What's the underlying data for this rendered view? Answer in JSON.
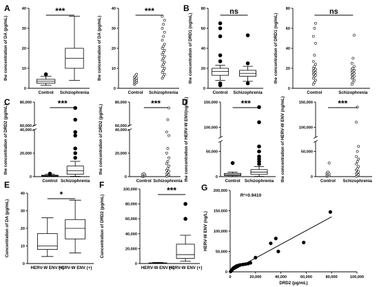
{
  "chart_data": [
    {
      "id": "A1",
      "panel": "A",
      "type": "box",
      "ylabel": "the concentration of DA (pg/mL)",
      "yticks": [
        0,
        10,
        20,
        30,
        40
      ],
      "ylim": [
        0,
        40
      ],
      "categories": [
        "Control",
        "Schizophrenia"
      ],
      "series": [
        {
          "whisker_low": 1.5,
          "q1": 2.5,
          "median": 3.5,
          "q3": 4.5,
          "whisker_high": 6,
          "outliers": [
            7
          ]
        },
        {
          "whisker_low": 4,
          "q1": 10,
          "median": 15,
          "q3": 20,
          "whisker_high": 36,
          "outliers": []
        }
      ],
      "significance": "***"
    },
    {
      "id": "A2",
      "type": "scatter",
      "ylabel": "the concentration of DA (pg/mL)",
      "yticks": [
        0,
        10,
        20,
        30,
        40
      ],
      "ylim": [
        0,
        40
      ],
      "categories": [
        "Control",
        "Schizophrenia"
      ],
      "groups": [
        {
          "values": [
            2,
            2.5,
            3,
            3.2,
            3.6,
            4,
            4.3,
            4.7,
            5.1,
            5.6,
            6.2,
            7
          ]
        },
        {
          "values": [
            5,
            6,
            7,
            8,
            9,
            10,
            11,
            12,
            13,
            14,
            15,
            16,
            17,
            18,
            19,
            20,
            21,
            22,
            24,
            26,
            28,
            30,
            32,
            34,
            36
          ]
        }
      ],
      "significance": "***"
    },
    {
      "id": "B1",
      "panel": "B",
      "type": "box",
      "ylabel": "the concentration of DRD1 (ng/mL)",
      "yticks": [
        0,
        20,
        40,
        60,
        80
      ],
      "ylim": [
        0,
        80
      ],
      "categories": [
        "Control",
        "Schizophrenia"
      ],
      "series": [
        {
          "whisker_low": 8,
          "q1": 13,
          "median": 17,
          "q3": 20,
          "whisker_high": 23,
          "outliers": [
            3,
            5,
            27,
            33,
            52,
            60,
            65
          ]
        },
        {
          "whisker_low": 7,
          "q1": 12,
          "median": 15,
          "q3": 18,
          "whisker_high": 22,
          "outliers": [
            5,
            25,
            53
          ]
        }
      ],
      "significance": "ns"
    },
    {
      "id": "B2",
      "type": "scatter",
      "ylabel": "the concentration of DRD1 (ng/mL)",
      "yticks": [
        0,
        20,
        40,
        60,
        80
      ],
      "ylim": [
        0,
        80
      ],
      "categories": [
        "Control",
        "Schizophrenia"
      ],
      "groups": [
        {
          "values": [
            4,
            6,
            8,
            10,
            12,
            13,
            14,
            15,
            16,
            17,
            18,
            19,
            20,
            22,
            24,
            27,
            33,
            45,
            52,
            60,
            65
          ]
        },
        {
          "values": [
            4,
            6,
            8,
            10,
            11,
            12,
            13,
            14,
            15,
            16,
            17,
            18,
            19,
            20,
            22,
            25,
            30,
            53
          ]
        }
      ],
      "significance": "ns"
    },
    {
      "id": "C1",
      "panel": "C",
      "type": "box",
      "ylabel": "the concentration of DRD2 (pg/mL)",
      "yticks": [
        0,
        20000,
        40000,
        60000,
        80000
      ],
      "ytick_labels": [
        "0",
        "20,000",
        "40,000",
        "60,000",
        "80,000"
      ],
      "axis_break": [
        40000,
        60000
      ],
      "ylim": [
        0,
        80000
      ],
      "categories": [
        "Control",
        "Schizophrenia"
      ],
      "series": [
        {
          "whisker_low": 100,
          "q1": 400,
          "median": 800,
          "q3": 1200,
          "whisker_high": 2000,
          "outliers": [
            2500
          ]
        },
        {
          "whisker_low": 300,
          "q1": 2000,
          "median": 5000,
          "q3": 9000,
          "whisker_high": 13000,
          "outliers": [
            16000,
            20000,
            24000,
            35000,
            38000,
            65000,
            75000
          ]
        }
      ],
      "significance": "***"
    },
    {
      "id": "C2",
      "type": "scatter",
      "ylabel": "the concentration of DRD2 (pg/mL)",
      "yticks": [
        0,
        20000,
        40000,
        60000,
        80000
      ],
      "ytick_labels": [
        "0",
        "20,000",
        "40,000",
        "60,000",
        "80,000"
      ],
      "axis_break": [
        40000,
        60000
      ],
      "ylim": [
        0,
        80000
      ],
      "categories": [
        "Control",
        "Schizophrenia"
      ],
      "groups": [
        {
          "values": [
            100,
            300,
            500,
            800,
            1100,
            1500,
            2000,
            2500
          ]
        },
        {
          "values": [
            300,
            800,
            1500,
            2500,
            3500,
            4500,
            5500,
            7000,
            9000,
            11000,
            13000,
            16000,
            20000,
            24000,
            35000,
            38000,
            65000,
            75000
          ]
        }
      ],
      "significance": "***"
    },
    {
      "id": "D1",
      "panel": "D",
      "type": "box",
      "ylabel": "the concentration of HERV-W ENV(ng/mL)",
      "yticks": [
        0,
        50000,
        100000,
        150000
      ],
      "ytick_labels": [
        "0",
        "50,000",
        "100,000",
        "150,000"
      ],
      "axis_break": [
        70000,
        80000
      ],
      "ylim": [
        0,
        150000
      ],
      "categories": [
        "Control",
        "Schizophrenia"
      ],
      "series": [
        {
          "whisker_low": 300,
          "q1": 2000,
          "median": 4000,
          "q3": 6500,
          "whisker_high": 9000,
          "outliers": [
            27000
          ]
        },
        {
          "whisker_low": 500,
          "q1": 4500,
          "median": 9000,
          "q3": 14000,
          "whisker_high": 20000,
          "outliers": [
            25000,
            30000,
            35000,
            40000,
            50000,
            60000,
            110000,
            140000
          ]
        }
      ],
      "significance": "***"
    },
    {
      "id": "D2",
      "type": "scatter",
      "ylabel": "the concentration of HERV-W ENV (ng/mL)",
      "yticks": [
        0,
        50000,
        100000,
        150000
      ],
      "ytick_labels": [
        "0",
        "50,000",
        "100,000",
        "150,000"
      ],
      "axis_break": [
        70000,
        80000
      ],
      "ylim": [
        0,
        150000
      ],
      "categories": [
        "Control",
        "Schizophrenia"
      ],
      "groups": [
        {
          "values": [
            300,
            1000,
            2000,
            3000,
            4000,
            5500,
            7000,
            9000,
            27000
          ]
        },
        {
          "values": [
            500,
            2000,
            4000,
            6000,
            8000,
            10000,
            13000,
            16000,
            20000,
            25000,
            30000,
            35000,
            40000,
            50000,
            60000,
            110000,
            140000
          ]
        }
      ],
      "significance": "***"
    },
    {
      "id": "E",
      "panel": "E",
      "type": "box",
      "ylabel": "Concentration of DA (pg/mL)",
      "yticks": [
        0,
        10,
        20,
        30,
        40
      ],
      "ylim": [
        0,
        40
      ],
      "categories": [
        "HERV-W ENV (−)",
        "HERV-W ENV (+)"
      ],
      "series": [
        {
          "whisker_low": 4,
          "q1": 8,
          "median": 10,
          "q3": 17,
          "whisker_high": 26,
          "outliers": []
        },
        {
          "whisker_low": 6,
          "q1": 14,
          "median": 20,
          "q3": 25,
          "whisker_high": 36,
          "outliers": []
        }
      ],
      "significance": "*"
    },
    {
      "id": "F",
      "panel": "F",
      "type": "box",
      "ylabel": "Concentration of DRD2 (pg/mL)",
      "yticks": [
        0,
        20000,
        40000,
        60000,
        80000,
        100000
      ],
      "ytick_labels": [
        "0",
        "20,000",
        "40,000",
        "60,000",
        "80,000",
        "100,000"
      ],
      "ylim": [
        0,
        100000
      ],
      "categories": [
        "HERV-W ENV (−)",
        "HERV-W ENV (+)"
      ],
      "series": [
        {
          "whisker_low": 0,
          "q1": 200,
          "median": 500,
          "q3": 900,
          "whisker_high": 1500,
          "outliers": []
        },
        {
          "whisker_low": 3000,
          "q1": 7000,
          "median": 12000,
          "q3": 26000,
          "whisker_high": 38000,
          "outliers": [
            60000,
            80000
          ]
        }
      ],
      "significance": "***"
    },
    {
      "id": "G",
      "panel": "G",
      "type": "scatter",
      "xlabel": "DRD2 (pg/mL)",
      "ylabel": "HERV-W ENV (ng/L)",
      "xticks": [
        0,
        20000,
        40000,
        60000,
        80000,
        100000
      ],
      "xtick_labels": [
        "0",
        "20,000",
        "40,000",
        "60,000",
        "80,000",
        "100,000"
      ],
      "yticks": [
        0,
        50000,
        100000,
        150000,
        200000
      ],
      "ytick_labels": [
        "0",
        "50,000",
        "100,000",
        "150,000",
        "200,000"
      ],
      "xlim": [
        0,
        100000
      ],
      "ylim": [
        0,
        200000
      ],
      "annotation": "R²=0.9410",
      "points": [
        [
          500,
          1000
        ],
        [
          1000,
          3000
        ],
        [
          1500,
          5000
        ],
        [
          2000,
          7000
        ],
        [
          2500,
          9000
        ],
        [
          3000,
          10000
        ],
        [
          3500,
          11000
        ],
        [
          4000,
          12000
        ],
        [
          4500,
          13000
        ],
        [
          5000,
          14000
        ],
        [
          6000,
          15000
        ],
        [
          7000,
          16000
        ],
        [
          8000,
          17000
        ],
        [
          10000,
          18000
        ],
        [
          12000,
          19000
        ],
        [
          14000,
          20000
        ],
        [
          16000,
          22000
        ],
        [
          20000,
          35000
        ],
        [
          32000,
          70000
        ],
        [
          36000,
          82000
        ],
        [
          38000,
          50000
        ],
        [
          58000,
          72000
        ],
        [
          79000,
          147000
        ]
      ],
      "fit_line": [
        [
          0,
          0
        ],
        [
          80000,
          135000
        ]
      ]
    }
  ]
}
